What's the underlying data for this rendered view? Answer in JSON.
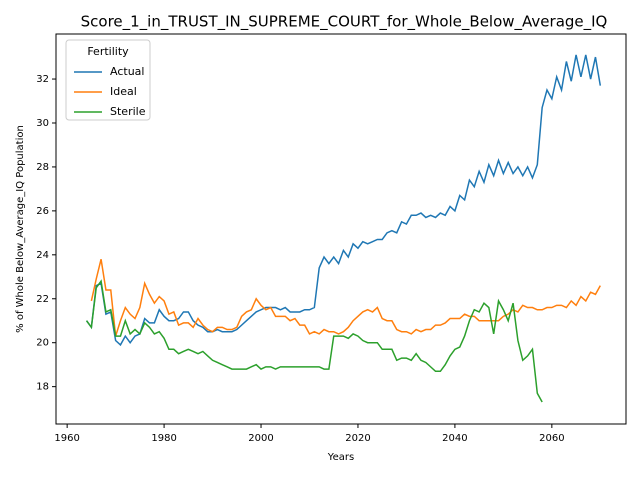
{
  "chart_data": {
    "type": "line",
    "title": "Score_1_in_TRUST_IN_SUPREME_COURT_for_Whole_Below_Average_IQ",
    "xlabel": "Years",
    "ylabel": "% of Whole Below_Average_IQ Population",
    "legend_title": "Fertility",
    "legend": "upper left",
    "x": [
      1964,
      1965,
      1966,
      1967,
      1968,
      1969,
      1970,
      1971,
      1972,
      1973,
      1974,
      1975,
      1976,
      1977,
      1978,
      1979,
      1980,
      1981,
      1982,
      1983,
      1984,
      1985,
      1986,
      1987,
      1988,
      1989,
      1990,
      1991,
      1992,
      1993,
      1994,
      1995,
      1996,
      1997,
      1998,
      1999,
      2000,
      2001,
      2002,
      2003,
      2004,
      2005,
      2006,
      2007,
      2008,
      2009,
      2010,
      2011,
      2012,
      2013,
      2014,
      2015,
      2016,
      2017,
      2018,
      2019,
      2020,
      2021,
      2022,
      2023,
      2024,
      2025,
      2026,
      2027,
      2028,
      2029,
      2030,
      2031,
      2032,
      2033,
      2034,
      2035,
      2036,
      2037,
      2038,
      2039,
      2040,
      2041,
      2042,
      2043,
      2044,
      2045,
      2046,
      2047,
      2048,
      2049,
      2050,
      2051,
      2052,
      2053,
      2054,
      2055,
      2056,
      2057,
      2058,
      2059,
      2060,
      2061,
      2062,
      2063,
      2064,
      2065,
      2066,
      2067,
      2068,
      2069,
      2070
    ],
    "series": [
      {
        "name": "Actual",
        "color": "#1f77b4",
        "values": [
          21.0,
          20.7,
          22.6,
          22.7,
          21.3,
          21.4,
          20.1,
          19.9,
          20.3,
          20.0,
          20.3,
          20.4,
          21.1,
          20.9,
          20.9,
          21.5,
          21.2,
          21.0,
          21.0,
          21.1,
          21.4,
          21.4,
          21.0,
          20.8,
          20.7,
          20.5,
          20.5,
          20.6,
          20.5,
          20.5,
          20.5,
          20.6,
          20.8,
          21.0,
          21.2,
          21.4,
          21.5,
          21.6,
          21.6,
          21.6,
          21.5,
          21.6,
          21.4,
          21.4,
          21.4,
          21.5,
          21.5,
          21.6,
          23.4,
          23.9,
          23.6,
          23.9,
          23.6,
          24.2,
          23.9,
          24.5,
          24.3,
          24.6,
          24.5,
          24.6,
          24.7,
          24.7,
          25.0,
          25.1,
          25.0,
          25.5,
          25.4,
          25.8,
          25.8,
          25.9,
          25.7,
          25.8,
          25.7,
          25.9,
          25.8,
          26.2,
          26.0,
          26.7,
          26.5,
          27.4,
          27.1,
          27.8,
          27.3,
          28.1,
          27.6,
          28.3,
          27.7,
          28.2,
          27.7,
          28.0,
          27.6,
          28.0,
          27.5,
          28.1,
          30.7,
          31.5,
          31.1,
          32.1,
          31.5,
          32.8,
          31.9,
          33.1,
          32.1,
          33.1,
          32.0,
          33.0,
          31.7
        ]
      },
      {
        "name": "Ideal",
        "color": "#ff7f0e",
        "values": [
          null,
          21.9,
          22.9,
          23.8,
          22.4,
          22.4,
          20.3,
          21.0,
          21.6,
          21.3,
          21.1,
          21.6,
          22.7,
          22.2,
          21.8,
          22.1,
          21.9,
          21.3,
          21.4,
          20.8,
          20.9,
          20.9,
          20.7,
          21.1,
          20.8,
          20.6,
          20.5,
          20.7,
          20.7,
          20.6,
          20.6,
          20.7,
          21.2,
          21.4,
          21.5,
          22.0,
          21.7,
          21.5,
          21.6,
          21.2,
          21.2,
          21.2,
          21.0,
          21.1,
          20.8,
          20.8,
          20.4,
          20.5,
          20.4,
          20.6,
          20.5,
          20.5,
          20.4,
          20.5,
          20.7,
          21.0,
          21.2,
          21.4,
          21.5,
          21.4,
          21.6,
          21.1,
          21.0,
          21.0,
          20.6,
          20.5,
          20.5,
          20.4,
          20.6,
          20.5,
          20.6,
          20.6,
          20.8,
          20.8,
          20.9,
          21.1,
          21.1,
          21.1,
          21.3,
          21.2,
          21.2,
          21.0,
          21.0,
          21.0,
          21.0,
          21.0,
          21.2,
          21.3,
          21.5,
          21.4,
          21.7,
          21.6,
          21.6,
          21.5,
          21.5,
          21.6,
          21.6,
          21.7,
          21.7,
          21.6,
          21.9,
          21.7,
          22.1,
          21.9,
          22.3,
          22.2,
          22.6
        ]
      },
      {
        "name": "Sterile",
        "color": "#2ca02c",
        "values": [
          21.0,
          20.7,
          22.5,
          22.8,
          21.4,
          21.5,
          20.3,
          20.3,
          21.0,
          20.4,
          20.6,
          20.4,
          20.9,
          20.7,
          20.4,
          20.5,
          20.2,
          19.7,
          19.7,
          19.5,
          19.6,
          19.7,
          19.6,
          19.5,
          19.6,
          19.4,
          19.2,
          19.1,
          19.0,
          18.9,
          18.8,
          18.8,
          18.8,
          18.8,
          18.9,
          19.0,
          18.8,
          18.9,
          18.9,
          18.8,
          18.9,
          18.9,
          18.9,
          18.9,
          18.9,
          18.9,
          18.9,
          18.9,
          18.9,
          18.8,
          18.8,
          20.3,
          20.3,
          20.3,
          20.2,
          20.4,
          20.3,
          20.1,
          20.0,
          20.0,
          20.0,
          19.7,
          19.7,
          19.7,
          19.2,
          19.3,
          19.3,
          19.2,
          19.5,
          19.2,
          19.1,
          18.9,
          18.7,
          18.7,
          19.0,
          19.4,
          19.7,
          19.8,
          20.3,
          21.0,
          21.5,
          21.4,
          21.8,
          21.6,
          20.4,
          21.9,
          21.5,
          21.0,
          21.8,
          20.1,
          19.2,
          19.4,
          19.7,
          17.7,
          17.3,
          null,
          null,
          null,
          null,
          null,
          null,
          null,
          null,
          null,
          null,
          null,
          null
        ]
      }
    ],
    "xlim": [
      1957.7,
      2075.3
    ],
    "xticks": [
      1960,
      1980,
      2000,
      2020,
      2040,
      2060
    ],
    "ylim": [
      16.3,
      34.05
    ],
    "yticks": [
      18,
      20,
      22,
      24,
      26,
      28,
      30,
      32
    ]
  }
}
